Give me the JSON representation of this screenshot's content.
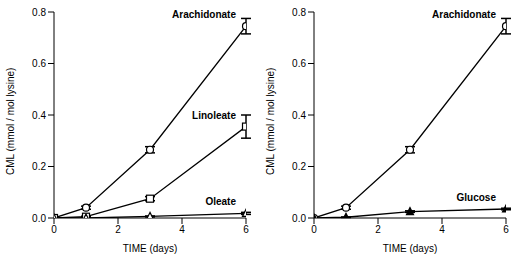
{
  "chart_data": [
    {
      "type": "line",
      "x_label": "TIME (days)",
      "y_label": "CML (mmol / mol lysine)",
      "xlim": [
        0,
        6
      ],
      "xticks": [
        0,
        2,
        4,
        6
      ],
      "ylim": [
        0,
        0.8
      ],
      "yticks": [
        {
          "value": 0,
          "label": "0.0"
        },
        {
          "value": 0.2,
          "label": "0.2"
        },
        {
          "value": 0.4,
          "label": "0.4"
        },
        {
          "value": 0.6,
          "label": "0.6"
        },
        {
          "value": 0.8,
          "label": "0.8"
        }
      ],
      "x": [
        0,
        1,
        3,
        6
      ],
      "series": [
        {
          "name": "Arachidonate",
          "color": "#000000",
          "marker": "circle",
          "values": [
            0,
            0.04,
            0.265,
            0.745
          ],
          "errors": [
            0,
            0.006,
            0.012,
            0.03
          ]
        },
        {
          "name": "Linoleate",
          "color": "#000000",
          "marker": "square",
          "values": [
            0,
            0.005,
            0.075,
            0.355
          ],
          "errors": [
            0,
            0.002,
            0.008,
            0.045
          ]
        },
        {
          "name": "Oleate",
          "color": "#000000",
          "marker": "triangle",
          "values": [
            0,
            0,
            0.006,
            0.018
          ],
          "errors": [
            0,
            0,
            0.002,
            0.004
          ]
        }
      ]
    },
    {
      "type": "line",
      "x_label": "TIME (days)",
      "y_label": "CML (mmol / mol lysine)",
      "xlim": [
        0,
        6
      ],
      "xticks": [
        0,
        2,
        4,
        6
      ],
      "ylim": [
        0,
        0.8
      ],
      "yticks": [
        {
          "value": 0,
          "label": "0.0"
        },
        {
          "value": 0.2,
          "label": "0.2"
        },
        {
          "value": 0.4,
          "label": "0.4"
        },
        {
          "value": 0.6,
          "label": "0.6"
        },
        {
          "value": 0.8,
          "label": "0.8"
        }
      ],
      "x": [
        0,
        1,
        3,
        6
      ],
      "series": [
        {
          "name": "Arachidonate",
          "color": "#000000",
          "marker": "circle",
          "values": [
            0,
            0.04,
            0.265,
            0.745
          ],
          "errors": [
            0,
            0.006,
            0.012,
            0.03
          ]
        },
        {
          "name": "Glucose",
          "color": "#000000",
          "marker": "filled_triangle",
          "values": [
            0,
            0.003,
            0.025,
            0.035
          ],
          "errors": [
            0,
            0.001,
            0.003,
            0.003
          ]
        }
      ]
    }
  ]
}
